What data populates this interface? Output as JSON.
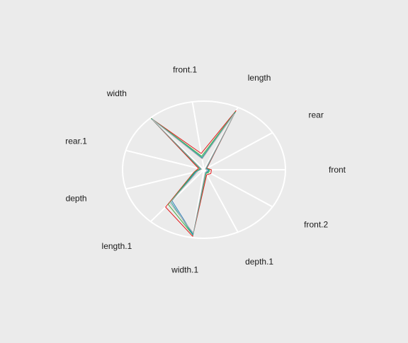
{
  "chart_data": {
    "type": "radar",
    "title": "",
    "axes": [
      "front",
      "rear",
      "length",
      "front.1",
      "width",
      "rear.1",
      "depth",
      "length.1",
      "width.1",
      "depth.1",
      "front.2"
    ],
    "rlim": [
      0,
      1
    ],
    "grid": true,
    "legend": "none",
    "series": [
      {
        "color": "#e41a1c",
        "values": [
          0.09,
          0.04,
          0.95,
          0.24,
          0.99,
          0.07,
          0.13,
          0.72,
          0.98,
          0.08,
          0.1
        ]
      },
      {
        "color": "#4daf4a",
        "values": [
          0.07,
          0.03,
          0.93,
          0.2,
          0.99,
          0.05,
          0.12,
          0.67,
          0.96,
          0.06,
          0.07
        ]
      },
      {
        "color": "#377eb8",
        "values": [
          0.05,
          0.03,
          0.91,
          0.17,
          0.98,
          0.04,
          0.1,
          0.6,
          0.95,
          0.05,
          0.05
        ]
      },
      {
        "color": "#26a69a",
        "values": [
          0.06,
          0.03,
          0.92,
          0.18,
          0.98,
          0.04,
          0.11,
          0.62,
          0.96,
          0.05,
          0.06
        ]
      },
      {
        "color": "#b3b3b3",
        "values": [
          0.03,
          0.02,
          0.9,
          0.16,
          0.97,
          0.03,
          0.08,
          0.64,
          0.93,
          0.04,
          0.04
        ]
      }
    ]
  }
}
